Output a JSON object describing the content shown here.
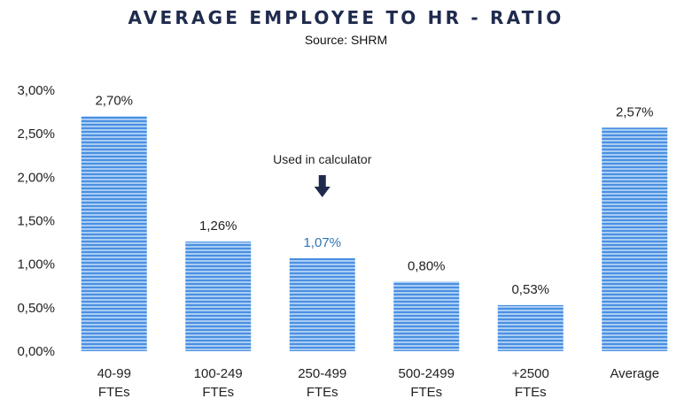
{
  "chart_data": {
    "type": "bar",
    "title": "AVERAGE EMPLOYEE TO HR - RATIO",
    "subtitle": "Source: SHRM",
    "categories": [
      [
        "40-99",
        "FTEs"
      ],
      [
        "100-249",
        "FTEs"
      ],
      [
        "250-499",
        "FTEs"
      ],
      [
        "500-2499",
        "FTEs"
      ],
      [
        "+2500",
        "FTEs"
      ],
      [
        "Average"
      ]
    ],
    "values": [
      2.7,
      1.26,
      1.07,
      0.8,
      0.53,
      2.57
    ],
    "data_labels": [
      "2,70%",
      "1,26%",
      "1,07%",
      "0,80%",
      "0,53%",
      "2,57%"
    ],
    "highlight_index": 2,
    "ylim": [
      0,
      3
    ],
    "yticks": [
      0,
      0.5,
      1,
      1.5,
      2,
      2.5,
      3
    ],
    "ytick_labels": [
      "0,00%",
      "0,50%",
      "1,00%",
      "1,50%",
      "2,00%",
      "2,50%",
      "3,00%"
    ],
    "xlabel": "",
    "ylabel": "",
    "grid": false,
    "annotation": {
      "text": "Used in calculator",
      "target_index": 2,
      "icon": "down-arrow-icon"
    },
    "colors": {
      "bar_base": "#4a90e2",
      "bar_stripe": "#a9ccf3",
      "highlight_label": "#2e75b6",
      "arrow": "#1f2b4d",
      "title": "#1f2b4d"
    }
  }
}
